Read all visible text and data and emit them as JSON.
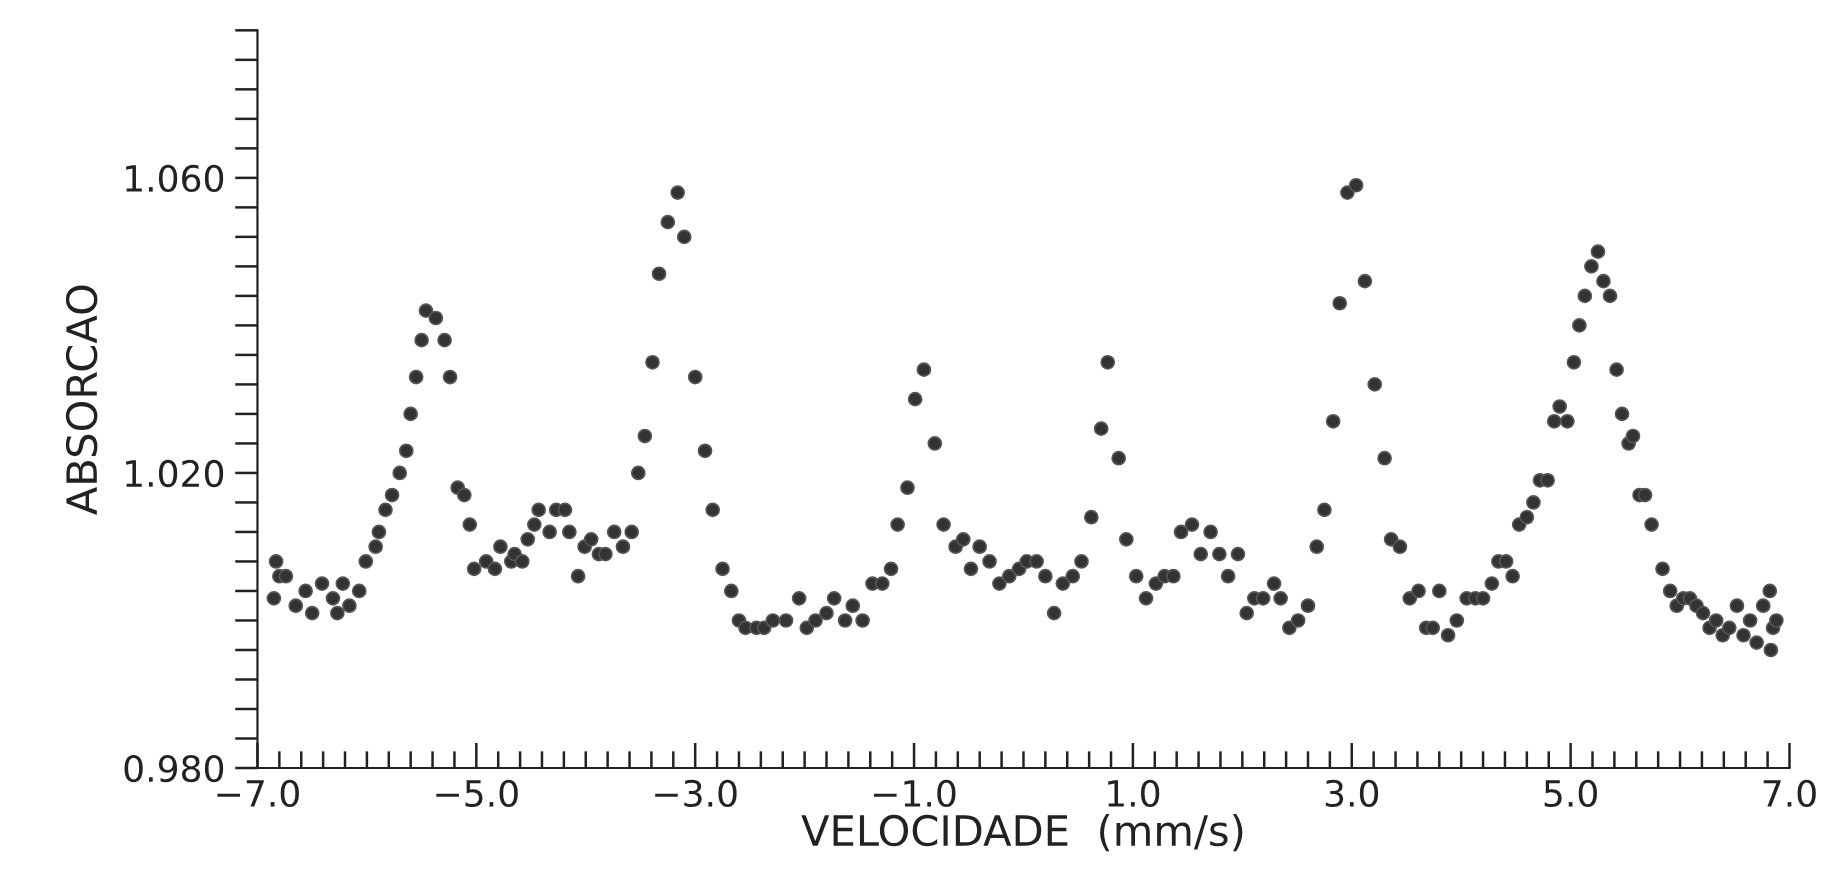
{
  "chart_data": {
    "type": "scatter",
    "xlabel": "VELOCIDADE  (mm/s)",
    "ylabel": "ABSORCAO",
    "marker": "circle",
    "grid": false,
    "xlim": [
      -7.0,
      7.0
    ],
    "ylim": [
      0.98,
      1.08
    ],
    "xticks": [
      {
        "value": -7.0,
        "label": "−7.0"
      },
      {
        "value": -6.8,
        "label": null
      },
      {
        "value": -6.6,
        "label": null
      },
      {
        "value": -6.4,
        "label": null
      },
      {
        "value": -6.2,
        "label": null
      },
      {
        "value": -6.0,
        "label": null
      },
      {
        "value": -5.8,
        "label": null
      },
      {
        "value": -5.6,
        "label": null
      },
      {
        "value": -5.4,
        "label": null
      },
      {
        "value": -5.2,
        "label": null
      },
      {
        "value": -5.0,
        "label": "−5.0"
      },
      {
        "value": -4.8,
        "label": null
      },
      {
        "value": -4.6,
        "label": null
      },
      {
        "value": -4.4,
        "label": null
      },
      {
        "value": -4.2,
        "label": null
      },
      {
        "value": -4.0,
        "label": null
      },
      {
        "value": -3.8,
        "label": null
      },
      {
        "value": -3.6,
        "label": null
      },
      {
        "value": -3.4,
        "label": null
      },
      {
        "value": -3.2,
        "label": null
      },
      {
        "value": -3.0,
        "label": "−3.0"
      },
      {
        "value": -2.8,
        "label": null
      },
      {
        "value": -2.6,
        "label": null
      },
      {
        "value": -2.4,
        "label": null
      },
      {
        "value": -2.2,
        "label": null
      },
      {
        "value": -2.0,
        "label": null
      },
      {
        "value": -1.8,
        "label": null
      },
      {
        "value": -1.6,
        "label": null
      },
      {
        "value": -1.4,
        "label": null
      },
      {
        "value": -1.2,
        "label": null
      },
      {
        "value": -1.0,
        "label": "−1.0"
      },
      {
        "value": -0.8,
        "label": null
      },
      {
        "value": -0.6,
        "label": null
      },
      {
        "value": -0.4,
        "label": null
      },
      {
        "value": -0.2,
        "label": null
      },
      {
        "value": 0.0,
        "label": null
      },
      {
        "value": 0.2,
        "label": null
      },
      {
        "value": 0.4,
        "label": null
      },
      {
        "value": 0.6,
        "label": null
      },
      {
        "value": 0.8,
        "label": null
      },
      {
        "value": 1.0,
        "label": "1.0"
      },
      {
        "value": 1.2,
        "label": null
      },
      {
        "value": 1.4,
        "label": null
      },
      {
        "value": 1.6,
        "label": null
      },
      {
        "value": 1.8,
        "label": null
      },
      {
        "value": 2.0,
        "label": null
      },
      {
        "value": 2.2,
        "label": null
      },
      {
        "value": 2.4,
        "label": null
      },
      {
        "value": 2.6,
        "label": null
      },
      {
        "value": 2.8,
        "label": null
      },
      {
        "value": 3.0,
        "label": "3.0"
      },
      {
        "value": 3.2,
        "label": null
      },
      {
        "value": 3.4,
        "label": null
      },
      {
        "value": 3.6,
        "label": null
      },
      {
        "value": 3.8,
        "label": null
      },
      {
        "value": 4.0,
        "label": null
      },
      {
        "value": 4.2,
        "label": null
      },
      {
        "value": 4.4,
        "label": null
      },
      {
        "value": 4.6,
        "label": null
      },
      {
        "value": 4.8,
        "label": null
      },
      {
        "value": 5.0,
        "label": "5.0"
      },
      {
        "value": 5.2,
        "label": null
      },
      {
        "value": 5.4,
        "label": null
      },
      {
        "value": 5.6,
        "label": null
      },
      {
        "value": 5.8,
        "label": null
      },
      {
        "value": 6.0,
        "label": null
      },
      {
        "value": 6.2,
        "label": null
      },
      {
        "value": 6.4,
        "label": null
      },
      {
        "value": 6.6,
        "label": null
      },
      {
        "value": 6.8,
        "label": null
      },
      {
        "value": 7.0,
        "label": "7.0"
      }
    ],
    "yticks": [
      {
        "value": 0.98,
        "label": "0.980"
      },
      {
        "value": 0.984,
        "label": null
      },
      {
        "value": 0.988,
        "label": null
      },
      {
        "value": 0.992,
        "label": null
      },
      {
        "value": 0.996,
        "label": null
      },
      {
        "value": 1.0,
        "label": null
      },
      {
        "value": 1.004,
        "label": null
      },
      {
        "value": 1.008,
        "label": null
      },
      {
        "value": 1.012,
        "label": null
      },
      {
        "value": 1.016,
        "label": null
      },
      {
        "value": 1.02,
        "label": "1.020"
      },
      {
        "value": 1.024,
        "label": null
      },
      {
        "value": 1.028,
        "label": null
      },
      {
        "value": 1.032,
        "label": null
      },
      {
        "value": 1.036,
        "label": null
      },
      {
        "value": 1.04,
        "label": null
      },
      {
        "value": 1.044,
        "label": null
      },
      {
        "value": 1.048,
        "label": null
      },
      {
        "value": 1.052,
        "label": null
      },
      {
        "value": 1.056,
        "label": null
      },
      {
        "value": 1.06,
        "label": "1.060"
      },
      {
        "value": 1.064,
        "label": null
      },
      {
        "value": 1.068,
        "label": null
      },
      {
        "value": 1.072,
        "label": null
      },
      {
        "value": 1.076,
        "label": null
      },
      {
        "value": 1.08,
        "label": null
      }
    ],
    "series": [
      {
        "color": "#333333",
        "x": [
          -6.83,
          -6.8,
          -6.74,
          -6.85,
          -6.65,
          -6.56,
          -6.5,
          -6.41,
          -6.31,
          -6.27,
          -6.22,
          -6.16,
          -6.07,
          -6.01,
          -5.92,
          -5.89,
          -5.83,
          -5.77,
          -5.7,
          -5.64,
          -5.6,
          -5.55,
          -5.5,
          -5.46,
          -5.37,
          -5.29,
          -5.24,
          -5.17,
          -5.11,
          -5.06,
          -5.02,
          -4.91,
          -4.83,
          -4.78,
          -4.68,
          -4.65,
          -4.58,
          -4.53,
          -4.47,
          -4.43,
          -4.33,
          -4.27,
          -4.19,
          -4.15,
          -4.07,
          -4.01,
          -3.95,
          -3.88,
          -3.82,
          -3.74,
          -3.66,
          -3.58,
          -3.52,
          -3.46,
          -3.39,
          -3.33,
          -3.25,
          -3.16,
          -3.1,
          -3.0,
          -2.91,
          -2.84,
          -2.75,
          -2.67,
          -2.6,
          -2.54,
          -2.44,
          -2.37,
          -2.29,
          -2.17,
          -2.05,
          -1.98,
          -1.9,
          -1.8,
          -1.73,
          -1.63,
          -1.56,
          -1.47,
          -1.38,
          -1.29,
          -1.21,
          -1.15,
          -1.06,
          -0.99,
          -0.91,
          -0.81,
          -0.73,
          -0.62,
          -0.55,
          -0.48,
          -0.4,
          -0.31,
          -0.22,
          -0.13,
          -0.04,
          0.03,
          0.12,
          0.2,
          0.28,
          0.36,
          0.45,
          0.53,
          0.62,
          0.71,
          0.77,
          0.87,
          0.94,
          1.03,
          1.12,
          1.21,
          1.29,
          1.37,
          1.44,
          1.54,
          1.62,
          1.71,
          1.79,
          1.87,
          1.96,
          2.04,
          2.11,
          2.19,
          2.29,
          2.35,
          2.43,
          2.51,
          2.6,
          2.68,
          2.75,
          2.83,
          2.89,
          2.96,
          3.04,
          3.12,
          3.21,
          3.3,
          3.36,
          3.44,
          3.53,
          3.61,
          3.68,
          3.74,
          3.8,
          3.88,
          3.96,
          4.05,
          4.13,
          4.2,
          4.28,
          4.34,
          4.41,
          4.47,
          4.53,
          4.6,
          4.66,
          4.72,
          4.79,
          4.85,
          4.9,
          4.97,
          5.03,
          5.08,
          5.13,
          5.19,
          5.25,
          5.3,
          5.36,
          5.42,
          5.47,
          5.53,
          5.57,
          5.63,
          5.68,
          5.74,
          5.84,
          5.91,
          5.97,
          6.03,
          6.09,
          6.15,
          6.21,
          6.27,
          6.33,
          6.39,
          6.45,
          6.52,
          6.58,
          6.64,
          6.7,
          6.76,
          6.82,
          6.83,
          6.85,
          6.88
        ],
        "values": [
          1.008,
          1.006,
          1.006,
          1.003,
          1.002,
          1.004,
          1.001,
          1.005,
          1.003,
          1.001,
          1.005,
          1.002,
          1.004,
          1.008,
          1.01,
          1.012,
          1.015,
          1.017,
          1.02,
          1.023,
          1.028,
          1.033,
          1.038,
          1.042,
          1.041,
          1.038,
          1.033,
          1.018,
          1.017,
          1.013,
          1.007,
          1.008,
          1.007,
          1.01,
          1.008,
          1.009,
          1.008,
          1.011,
          1.013,
          1.015,
          1.012,
          1.015,
          1.015,
          1.012,
          1.006,
          1.01,
          1.011,
          1.009,
          1.009,
          1.012,
          1.01,
          1.012,
          1.02,
          1.025,
          1.035,
          1.047,
          1.054,
          1.058,
          1.052,
          1.033,
          1.023,
          1.015,
          1.007,
          1.004,
          1.0,
          0.999,
          0.999,
          0.999,
          1.0,
          1.0,
          1.003,
          0.999,
          1.0,
          1.001,
          1.003,
          1.0,
          1.002,
          1.0,
          1.005,
          1.005,
          1.007,
          1.013,
          1.018,
          1.03,
          1.034,
          1.024,
          1.013,
          1.01,
          1.011,
          1.007,
          1.01,
          1.008,
          1.005,
          1.006,
          1.007,
          1.008,
          1.008,
          1.006,
          1.001,
          1.005,
          1.006,
          1.008,
          1.014,
          1.026,
          1.035,
          1.022,
          1.011,
          1.006,
          1.003,
          1.005,
          1.006,
          1.006,
          1.012,
          1.013,
          1.009,
          1.012,
          1.009,
          1.006,
          1.009,
          1.001,
          1.003,
          1.003,
          1.005,
          1.003,
          0.999,
          1.0,
          1.002,
          1.01,
          1.015,
          1.027,
          1.043,
          1.058,
          1.059,
          1.046,
          1.032,
          1.022,
          1.011,
          1.01,
          1.003,
          1.004,
          0.999,
          0.999,
          1.004,
          0.998,
          1.0,
          1.003,
          1.003,
          1.003,
          1.005,
          1.008,
          1.008,
          1.006,
          1.013,
          1.014,
          1.016,
          1.019,
          1.019,
          1.027,
          1.029,
          1.027,
          1.035,
          1.04,
          1.044,
          1.048,
          1.05,
          1.046,
          1.044,
          1.034,
          1.028,
          1.024,
          1.025,
          1.017,
          1.017,
          1.013,
          1.007,
          1.004,
          1.002,
          1.003,
          1.003,
          1.002,
          1.001,
          0.999,
          1.0,
          0.998,
          0.999,
          1.002,
          0.998,
          1.0,
          0.997,
          1.002,
          1.004,
          0.996,
          0.999,
          1.0
        ]
      }
    ]
  }
}
